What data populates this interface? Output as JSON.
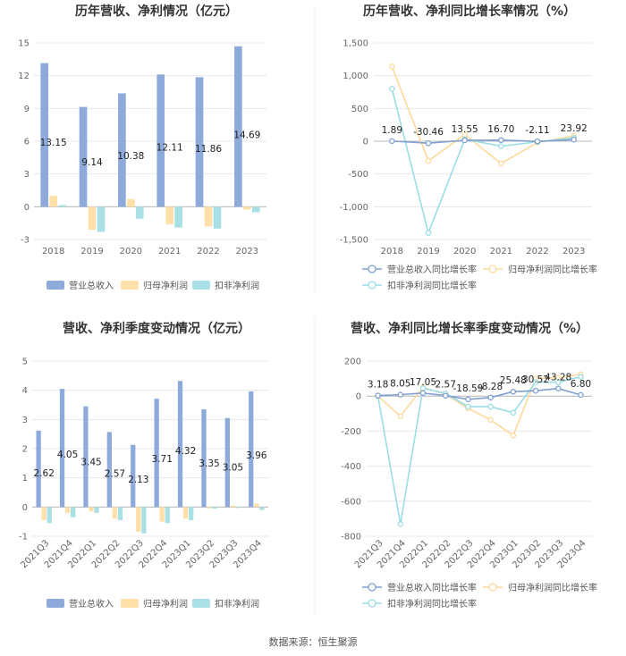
{
  "source_text": "数据来源：恒生聚源",
  "colors": {
    "revenue_bar": "#8eaadb",
    "net_profit_bar": "#ffe0a8",
    "deducted_bar": "#a8e0e6",
    "revenue_line": "#7f9fd0",
    "net_profit_line": "#ffd89a",
    "deducted_line": "#9adde5",
    "grid": "#e8e8e8",
    "axis": "#bbbbbb"
  },
  "chart_data": [
    {
      "id": "annual-bars",
      "type": "bar",
      "title": "历年营收、净利情况（亿元）",
      "categories": [
        "2018",
        "2019",
        "2020",
        "2021",
        "2022",
        "2023"
      ],
      "series": [
        {
          "name": "营业总收入",
          "values": [
            13.15,
            9.14,
            10.38,
            12.11,
            11.86,
            14.69
          ]
        },
        {
          "name": "归母净利润",
          "values": [
            1.0,
            -2.1,
            0.7,
            -1.6,
            -1.8,
            -0.25
          ]
        },
        {
          "name": "扣非净利润",
          "values": [
            0.15,
            -2.3,
            -1.1,
            -1.9,
            -2.0,
            -0.5
          ]
        }
      ],
      "data_labels": [
        "13.15",
        "9.14",
        "10.38",
        "12.11",
        "11.86",
        "14.69"
      ],
      "ylim": [
        -3,
        15
      ],
      "yticks": [
        "-3",
        "0",
        "3",
        "6",
        "9",
        "12",
        "15"
      ],
      "legend": [
        "营业总收入",
        "归母净利润",
        "扣非净利润"
      ]
    },
    {
      "id": "annual-growth",
      "type": "line",
      "title": "历年营收、净利同比增长率情况（%）",
      "categories": [
        "2018",
        "2019",
        "2020",
        "2021",
        "2022",
        "2023"
      ],
      "series": [
        {
          "name": "营业总收入同比增长率",
          "values": [
            1.89,
            -30.46,
            13.55,
            16.7,
            -2.11,
            23.92
          ]
        },
        {
          "name": "归母净利润同比增长率",
          "values": [
            1140,
            -300,
            100,
            -340,
            -20,
            80
          ]
        },
        {
          "name": "扣非净利润同比增长率",
          "values": [
            800,
            -1400,
            30,
            -75,
            -10,
            50
          ]
        }
      ],
      "data_labels": [
        "1.89",
        "-30.46",
        "13.55",
        "16.70",
        "-2.11",
        "23.92"
      ],
      "ylim": [
        -1500,
        1500
      ],
      "yticks": [
        "-1,500",
        "-1,000",
        "-500",
        "0",
        "500",
        "1,000",
        "1,500"
      ],
      "legend": [
        "营业总收入同比增长率",
        "归母净利润同比增长率",
        "扣非净利润同比增长率"
      ]
    },
    {
      "id": "quarterly-bars",
      "type": "bar",
      "title": "营收、净利季度变动情况（亿元）",
      "categories": [
        "2021Q3",
        "2021Q4",
        "2022Q1",
        "2022Q2",
        "2022Q3",
        "2022Q4",
        "2023Q1",
        "2023Q2",
        "2023Q3",
        "2023Q4"
      ],
      "series": [
        {
          "name": "营业总收入",
          "values": [
            2.62,
            4.05,
            3.45,
            2.57,
            2.13,
            3.71,
            4.32,
            3.35,
            3.05,
            3.96
          ]
        },
        {
          "name": "归母净利润",
          "values": [
            -0.45,
            -0.2,
            -0.15,
            -0.4,
            -0.85,
            -0.5,
            -0.4,
            -0.05,
            0.05,
            0.12
          ]
        },
        {
          "name": "扣非净利润",
          "values": [
            -0.55,
            -0.35,
            -0.2,
            -0.45,
            -0.9,
            -0.55,
            -0.45,
            -0.05,
            -0.02,
            -0.1
          ]
        }
      ],
      "data_labels": [
        "2.62",
        "4.05",
        "3.45",
        "2.57",
        "2.13",
        "3.71",
        "4.32",
        "3.35",
        "3.05",
        "3.96"
      ],
      "ylim": [
        -1,
        5
      ],
      "yticks": [
        "-1",
        "0",
        "1",
        "2",
        "3",
        "4",
        "5"
      ],
      "legend": [
        "营业总收入",
        "归母净利润",
        "扣非净利润"
      ]
    },
    {
      "id": "quarterly-growth",
      "type": "line",
      "title": "营收、净利同比增长率季度变动情况（%）",
      "categories": [
        "2021Q3",
        "2021Q4",
        "2022Q1",
        "2022Q2",
        "2022Q3",
        "2022Q4",
        "2023Q1",
        "2023Q2",
        "2023Q3",
        "2023Q4"
      ],
      "series": [
        {
          "name": "营业总收入同比增长率",
          "values": [
            3.18,
            8.05,
            17.05,
            2.57,
            -18.59,
            -8.28,
            25.48,
            30.52,
            43.28,
            6.8
          ]
        },
        {
          "name": "归母净利润同比增长率",
          "values": [
            0,
            -115,
            50,
            10,
            -70,
            -135,
            -225,
            100,
            105,
            125
          ]
        },
        {
          "name": "扣非净利润同比增长率",
          "values": [
            0,
            -730,
            45,
            15,
            -60,
            -60,
            -95,
            80,
            80,
            110
          ]
        }
      ],
      "data_labels": [
        "3.18",
        "8.05",
        "17.05",
        "2.57",
        "-18.59",
        "-8.28",
        "25.48",
        "30.52",
        "43.28",
        "6.80"
      ],
      "ylim": [
        -800,
        200
      ],
      "yticks": [
        "-800",
        "-600",
        "-400",
        "-200",
        "0",
        "200"
      ],
      "legend": [
        "营业总收入同比增长率",
        "归母净利润同比增长率",
        "扣非净利润同比增长率"
      ]
    }
  ]
}
